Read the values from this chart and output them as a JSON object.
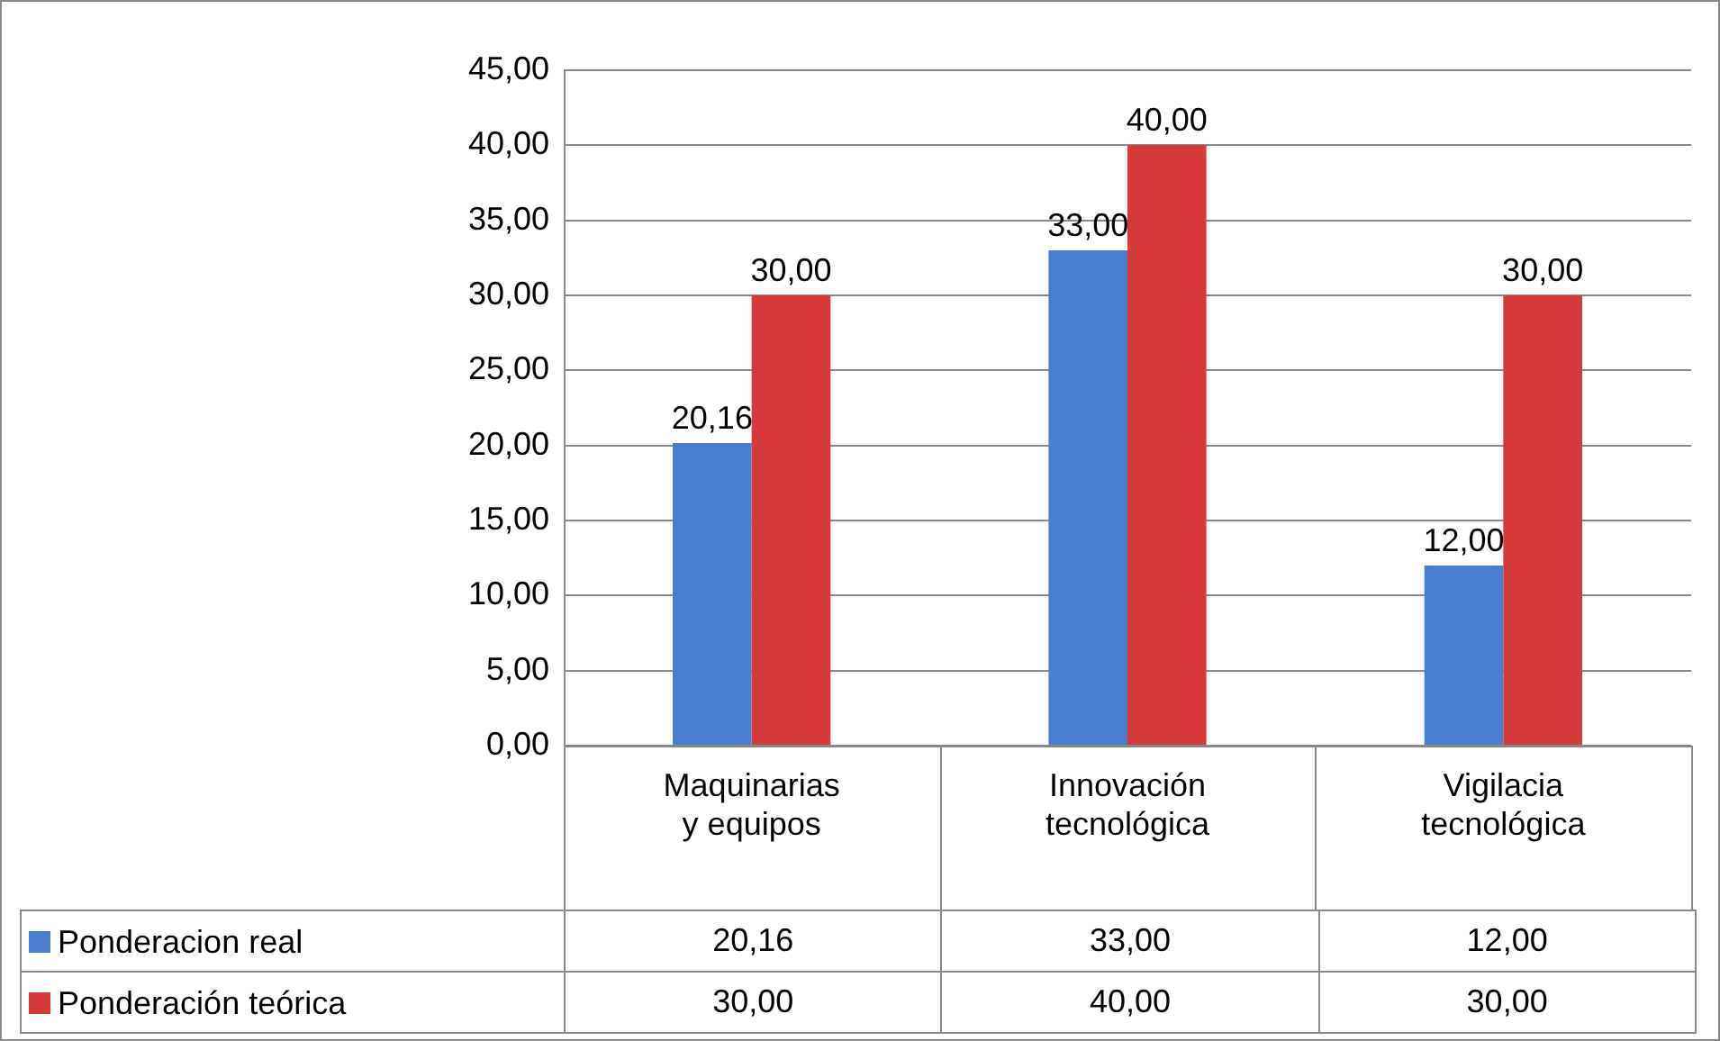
{
  "chart_data": {
    "type": "bar",
    "categories": [
      "Maquinarias y equipos",
      "Innovación tecnológica",
      "Vigilacia tecnológica"
    ],
    "series": [
      {
        "name": "Ponderacion real",
        "color": "#4a7fd0",
        "values": [
          20.16,
          33,
          12
        ],
        "value_labels": [
          "20,16",
          "33,00",
          "12,00"
        ]
      },
      {
        "name": "Ponderación teórica",
        "color": "#d63a3a",
        "values": [
          30,
          40,
          30
        ],
        "value_labels": [
          "30,00",
          "40,00",
          "30,00"
        ]
      }
    ],
    "ylim": [
      0,
      45
    ],
    "yticks": [
      {
        "value": 0,
        "label": "0,00"
      },
      {
        "value": 5,
        "label": "5,00"
      },
      {
        "value": 10,
        "label": "10,00"
      },
      {
        "value": 15,
        "label": "15,00"
      },
      {
        "value": 20,
        "label": "20,00"
      },
      {
        "value": 25,
        "label": "25,00"
      },
      {
        "value": 30,
        "label": "30,00"
      },
      {
        "value": 35,
        "label": "35,00"
      },
      {
        "value": 40,
        "label": "40,00"
      },
      {
        "value": 45,
        "label": "45,00"
      }
    ],
    "grid": "y",
    "legend": "bottom"
  }
}
